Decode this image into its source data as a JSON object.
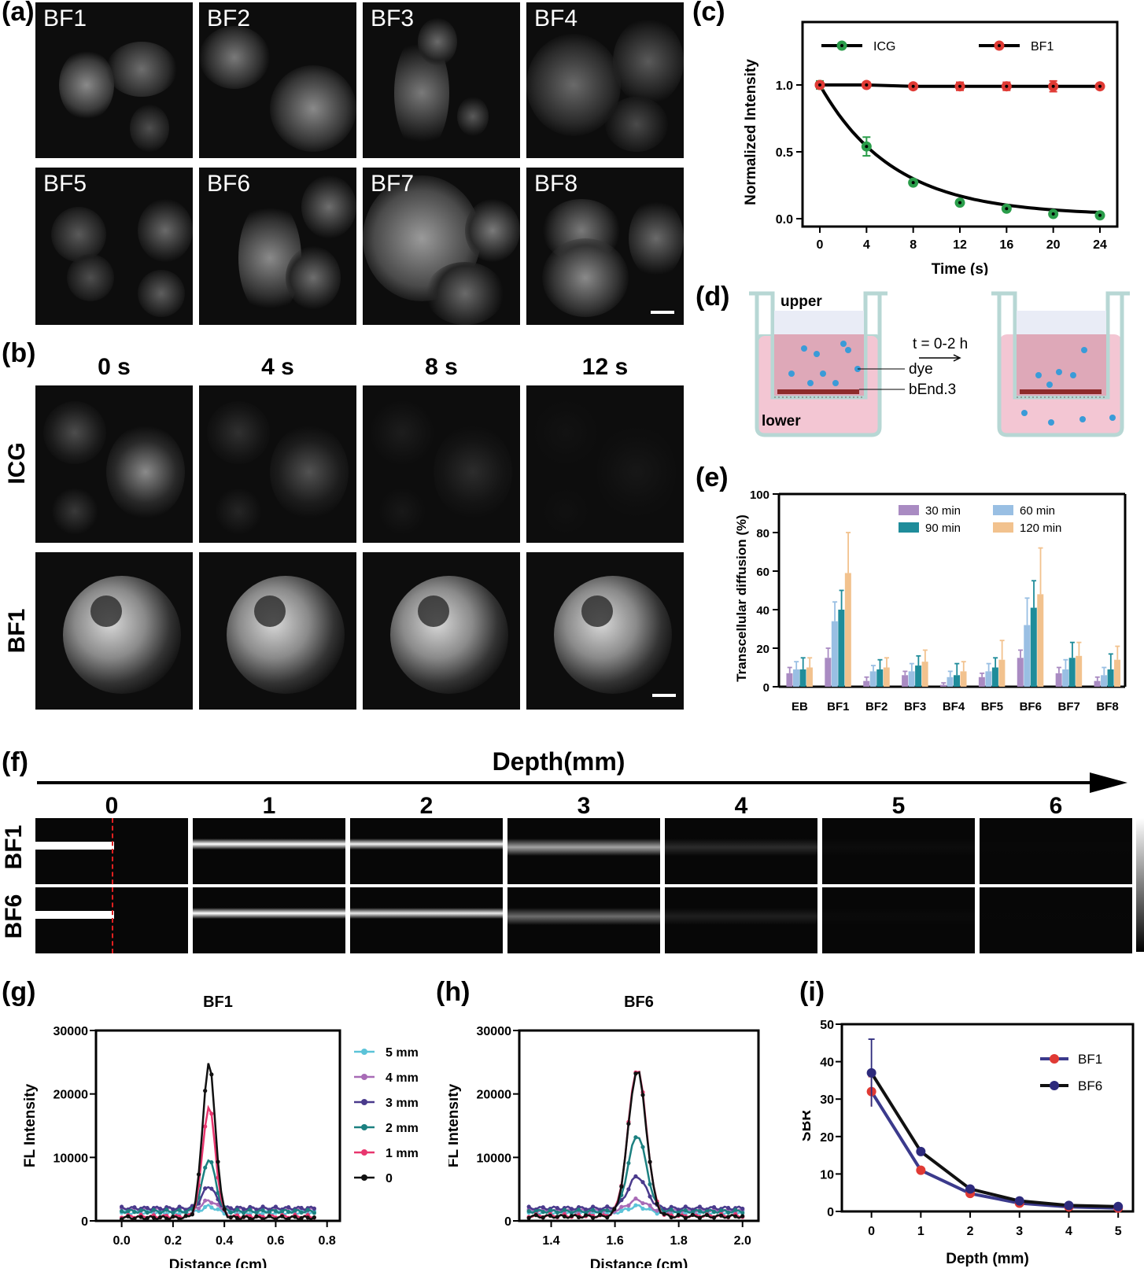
{
  "panels": {
    "a": "(a)",
    "b": "(b)",
    "c": "(c)",
    "d": "(d)",
    "e": "(e)",
    "f": "(f)",
    "g": "(g)",
    "h": "(h)",
    "i": "(i)"
  },
  "panel_a": {
    "tiles": [
      "BF1",
      "BF2",
      "BF3",
      "BF4",
      "BF5",
      "BF6",
      "BF7",
      "BF8"
    ]
  },
  "panel_b": {
    "time_labels": [
      "0 s",
      "4 s",
      "8 s",
      "12 s"
    ],
    "row_labels": [
      "ICG",
      "BF1"
    ],
    "icg_fade": [
      1.0,
      0.55,
      0.25,
      0.08
    ]
  },
  "panel_d": {
    "upper": "upper",
    "lower": "lower",
    "time": "t = 0-2 h",
    "dye": "dye",
    "cell": "bEnd.3"
  },
  "panel_f": {
    "title": "Depth(mm)",
    "depths": [
      "0",
      "1",
      "2",
      "3",
      "4",
      "5",
      "6"
    ],
    "rows": [
      "BF1",
      "BF6"
    ],
    "brightness_bf1": [
      1.0,
      1.0,
      0.95,
      0.75,
      0.35,
      0.12,
      0.05
    ],
    "brightness_bf6": [
      1.0,
      1.0,
      0.92,
      0.6,
      0.28,
      0.1,
      0.04
    ]
  },
  "chart_data": [
    {
      "panel": "c",
      "type": "line",
      "xlabel": "Time (s)",
      "ylabel": "Normalized Intensity",
      "x": [
        0,
        4,
        8,
        12,
        16,
        20,
        24
      ],
      "xlim": [
        0,
        24
      ],
      "ylim": [
        0,
        1.0
      ],
      "yticks": [
        "0.0",
        "0.5",
        "1.0"
      ],
      "xticks": [
        "0",
        "4",
        "8",
        "12",
        "16",
        "20",
        "24"
      ],
      "legend_placement": "top",
      "series": [
        {
          "name": "ICG",
          "color": "#2a9d4a",
          "values": [
            1.0,
            0.54,
            0.27,
            0.12,
            0.075,
            0.035,
            0.025
          ],
          "err": [
            0.03,
            0.07,
            0.02,
            0.01,
            0.01,
            0.01,
            0.01
          ]
        },
        {
          "name": "BF1",
          "color": "#e03a34",
          "values": [
            1.0,
            1.0,
            0.99,
            0.99,
            0.99,
            0.99,
            0.99
          ],
          "err": [
            0.02,
            0.02,
            0.02,
            0.03,
            0.03,
            0.04,
            0.01
          ]
        }
      ]
    },
    {
      "panel": "e",
      "type": "bar",
      "ylabel": "Transcellular diffusion (%)",
      "categories": [
        "EB",
        "BF1",
        "BF2",
        "BF3",
        "BF4",
        "BF5",
        "BF6",
        "BF7",
        "BF8"
      ],
      "ylim": [
        0,
        100
      ],
      "yticks": [
        "0",
        "20",
        "40",
        "60",
        "80",
        "100"
      ],
      "legend_placement": "top",
      "series": [
        {
          "name": "30 min",
          "color": "#a98bc2",
          "values": [
            7,
            15,
            3,
            6,
            1,
            5,
            15,
            7,
            3
          ],
          "err": [
            3,
            5,
            2,
            2,
            1,
            2,
            4,
            3,
            2
          ]
        },
        {
          "name": "60 min",
          "color": "#99bfe3",
          "values": [
            9,
            34,
            8,
            8,
            5,
            8,
            32,
            9,
            6
          ],
          "err": [
            4,
            10,
            3,
            4,
            3,
            4,
            14,
            5,
            4
          ]
        },
        {
          "name": "90 min",
          "color": "#1f8c9a",
          "values": [
            9,
            40,
            9,
            11,
            6,
            10,
            41,
            15,
            9
          ],
          "err": [
            6,
            10,
            5,
            5,
            6,
            5,
            14,
            8,
            8
          ]
        },
        {
          "name": "120 min",
          "color": "#f2c28e",
          "values": [
            10,
            59,
            10,
            13,
            8,
            14,
            48,
            16,
            14
          ],
          "err": [
            5,
            21,
            5,
            6,
            5,
            10,
            24,
            7,
            7
          ]
        }
      ]
    },
    {
      "panel": "g",
      "type": "line",
      "title": "BF1",
      "xlabel": "Distance (cm)",
      "ylabel": "FL Intensity",
      "xlim": [
        -0.1,
        0.85
      ],
      "ylim": [
        0,
        30000
      ],
      "xticks": [
        "0.0",
        "0.2",
        "0.4",
        "0.6",
        "0.8"
      ],
      "yticks": [
        "0",
        "10000",
        "20000",
        "30000"
      ],
      "peak_center": 0.34,
      "peak_width": 0.035,
      "x_range": [
        0.0,
        0.75
      ],
      "series": [
        {
          "name": "5 mm",
          "color": "#5bc3d8",
          "marker": "diamond",
          "baseline": 1300,
          "peak": 1000
        },
        {
          "name": "4 mm",
          "color": "#a86bb6",
          "marker": "square",
          "baseline": 1800,
          "peak": 1400
        },
        {
          "name": "3 mm",
          "color": "#4a3a8c",
          "marker": "triangle",
          "baseline": 2000,
          "peak": 3500
        },
        {
          "name": "2 mm",
          "color": "#1c8080",
          "marker": "triangle-down",
          "baseline": 1500,
          "peak": 8300
        },
        {
          "name": "1 mm",
          "color": "#e8366e",
          "marker": "square",
          "baseline": 700,
          "peak": 17300
        },
        {
          "name": "0",
          "color": "#111111",
          "marker": "circle",
          "baseline": 500,
          "peak": 24300
        }
      ]
    },
    {
      "panel": "h",
      "type": "line",
      "title": "BF6",
      "xlabel": "Distance (cm)",
      "ylabel": "FL Intensity",
      "xlim": [
        1.3,
        2.05
      ],
      "ylim": [
        0,
        30000
      ],
      "xticks": [
        "1.4",
        "1.6",
        "1.8",
        "2.0"
      ],
      "yticks": [
        "0",
        "10000",
        "20000",
        "30000"
      ],
      "peak_center": 1.67,
      "peak_width": 0.04,
      "x_range": [
        1.33,
        2.0
      ],
      "series": [
        {
          "name": "5 mm",
          "color": "#5bc3d8",
          "marker": "diamond",
          "baseline": 1300,
          "peak": 1000
        },
        {
          "name": "4 mm",
          "color": "#a86bb6",
          "marker": "square",
          "baseline": 1600,
          "peak": 1700
        },
        {
          "name": "3 mm",
          "color": "#4a3a8c",
          "marker": "triangle",
          "baseline": 2000,
          "peak": 5000
        },
        {
          "name": "2 mm",
          "color": "#1c8080",
          "marker": "triangle-down",
          "baseline": 1500,
          "peak": 12000
        },
        {
          "name": "1 mm",
          "color": "#e8366e",
          "marker": "square",
          "baseline": 800,
          "peak": 23200
        },
        {
          "name": "0",
          "color": "#111111",
          "marker": "circle",
          "baseline": 700,
          "peak": 23000
        }
      ]
    },
    {
      "panel": "i",
      "type": "line",
      "xlabel": "Depth (mm)",
      "ylabel": "SBR",
      "x": [
        0,
        1,
        2,
        3,
        4,
        5
      ],
      "xlim": [
        -0.6,
        5.3
      ],
      "ylim": [
        0,
        50
      ],
      "xticks": [
        "0",
        "1",
        "2",
        "3",
        "4",
        "5"
      ],
      "yticks": [
        "0",
        "10",
        "20",
        "30",
        "40",
        "50"
      ],
      "legend_placement": "right",
      "series": [
        {
          "name": "BF1",
          "color": "#e03a34",
          "line": "#3b3a8c",
          "values": [
            32,
            11,
            4.8,
            2.2,
            1.2,
            0.9
          ],
          "err": [
            4,
            0.5,
            0.4,
            0.3,
            0.2,
            0.2
          ]
        },
        {
          "name": "BF6",
          "color": "#2d2a7c",
          "line": "#111111",
          "values": [
            37,
            16,
            6,
            2.8,
            1.6,
            1.3
          ],
          "err": [
            9,
            0.5,
            0.5,
            0.3,
            0.2,
            0.2
          ]
        }
      ]
    }
  ]
}
